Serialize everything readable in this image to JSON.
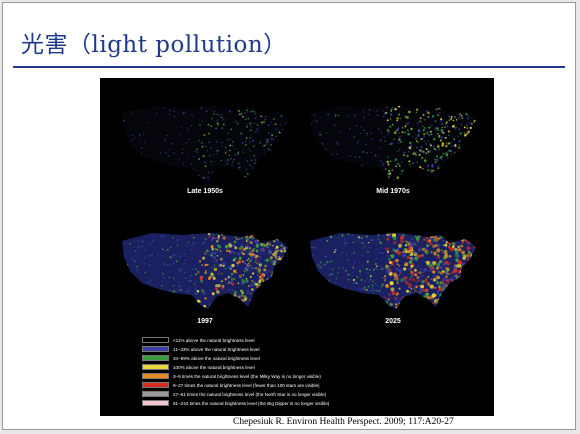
{
  "slide": {
    "title": "光害（light pollution）",
    "citation": "Chepesiuk R. Environ Health Perspect. 2009; 117:A20-27"
  },
  "maps": [
    {
      "caption": "Late 1950s",
      "intensity": 0.25
    },
    {
      "caption": "Mid 1970s",
      "intensity": 0.45
    },
    {
      "caption": "1997",
      "intensity": 0.7
    },
    {
      "caption": "2025",
      "intensity": 0.95
    }
  ],
  "legend": [
    {
      "color": "#000000",
      "label": "<11% above the natural brightness level"
    },
    {
      "color": "#3a3fa0",
      "label": "11–33% above the natural brightness level"
    },
    {
      "color": "#3b9e3a",
      "label": "34–99% above the natural brightness level"
    },
    {
      "color": "#e8d83a",
      "label": "100% above the natural brightness level"
    },
    {
      "color": "#e88a22",
      "label": "3–9 times the natural brightness level (the Milky Way is no longer visible)"
    },
    {
      "color": "#d82a1e",
      "label": "9–27 times the natural brightness level (fewer than 100 stars are visible)"
    },
    {
      "color": "#9a9a9a",
      "label": "27–81 times the natural brightness level (the North Star is no longer visible)"
    },
    {
      "color": "#f4c8d0",
      "label": "81–243 times the natural brightness level (the Big Dipper is no longer visible)"
    }
  ]
}
